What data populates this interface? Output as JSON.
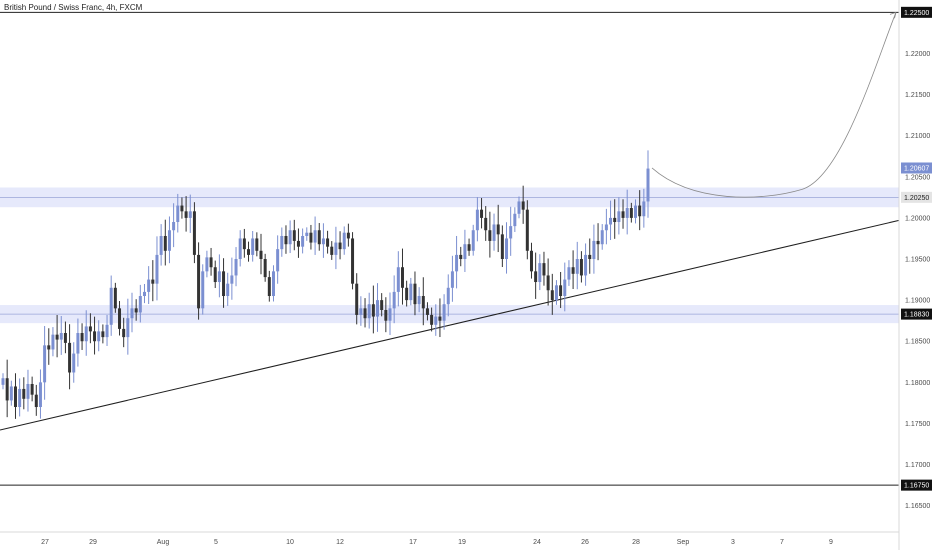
{
  "header": {
    "title": "British Pound / Swiss Franc, 4h, FXCM"
  },
  "colors": {
    "up_candle": "#7b8fd1",
    "down_candle": "#333333",
    "zone_fill": "#e6e9fb",
    "zone_line": "#9aa5d8",
    "trend_line": "#1f1f1f",
    "price_tag": "#7b8fd1",
    "black_tag": "#111111",
    "gray_tag": "#e4e4e4"
  },
  "chart_data": {
    "type": "candlestick",
    "title": "British Pound / Swiss Franc, 4h, FXCM",
    "ylim": [
      1.1618,
      1.2265
    ],
    "y_ticks": [
      "1.16500",
      "1.17000",
      "1.17500",
      "1.18000",
      "1.18500",
      "1.19000",
      "1.19500",
      "1.20000",
      "1.20500",
      "1.21000",
      "1.21500",
      "1.22000"
    ],
    "x_ticks": [
      "27",
      "29",
      "Aug",
      "5",
      "10",
      "12",
      "17",
      "19",
      "24",
      "26",
      "28",
      "Sep",
      "3",
      "7",
      "9"
    ],
    "price_labels": [
      {
        "value": 1.225,
        "label": "1.22500",
        "style": "black"
      },
      {
        "value": 1.20607,
        "label": "1.20607",
        "style": "price"
      },
      {
        "value": 1.2025,
        "label": "1.20250",
        "style": "gray"
      },
      {
        "value": 1.1883,
        "label": "1.18830",
        "style": "black"
      },
      {
        "value": 1.1675,
        "label": "1.16750",
        "style": "black"
      }
    ],
    "horizontal_lines": [
      1.225,
      1.1675
    ],
    "zones": [
      {
        "center": 1.2025,
        "low": 1.2013,
        "high": 1.2037
      },
      {
        "center": 1.1883,
        "low": 1.1872,
        "high": 1.1894
      }
    ],
    "trendline": {
      "start": 1.1742,
      "end": 1.1997
    },
    "projection": {
      "from": 1.20607,
      "trough": 1.2025,
      "to": 1.225
    },
    "close_series": [
      1.1805,
      1.1778,
      1.1795,
      1.177,
      1.1792,
      1.178,
      1.1798,
      1.1785,
      1.177,
      1.18,
      1.1845,
      1.184,
      1.1858,
      1.1852,
      1.186,
      1.1848,
      1.1812,
      1.1835,
      1.186,
      1.185,
      1.1868,
      1.1862,
      1.185,
      1.1862,
      1.1855,
      1.187,
      1.1915,
      1.189,
      1.1865,
      1.1855,
      1.1878,
      1.189,
      1.1885,
      1.1905,
      1.191,
      1.1925,
      1.192,
      1.1955,
      1.1978,
      1.196,
      1.1985,
      1.1995,
      1.2015,
      1.2008,
      1.2,
      1.2008,
      1.1955,
      1.189,
      1.1935,
      1.1952,
      1.194,
      1.1922,
      1.1935,
      1.1905,
      1.192,
      1.193,
      1.195,
      1.1975,
      1.1962,
      1.1955,
      1.1975,
      1.196,
      1.195,
      1.1928,
      1.1905,
      1.1935,
      1.1962,
      1.1978,
      1.1968,
      1.1985,
      1.1972,
      1.1965,
      1.1978,
      1.1982,
      1.197,
      1.1985,
      1.1968,
      1.1975,
      1.1965,
      1.1955,
      1.197,
      1.1962,
      1.1982,
      1.1975,
      1.192,
      1.1882,
      1.189,
      1.1878,
      1.1895,
      1.188,
      1.19,
      1.1888,
      1.1875,
      1.189,
      1.191,
      1.194,
      1.1915,
      1.19,
      1.192,
      1.1895,
      1.1905,
      1.189,
      1.1882,
      1.187,
      1.188,
      1.1875,
      1.1895,
      1.1915,
      1.1935,
      1.1955,
      1.195,
      1.1968,
      1.196,
      1.1985,
      1.201,
      1.2,
      1.1985,
      1.1972,
      1.1992,
      1.198,
      1.195,
      1.1975,
      1.199,
      1.2005,
      1.202,
      1.201,
      1.196,
      1.1935,
      1.1922,
      1.1945,
      1.193,
      1.1912,
      1.19,
      1.1918,
      1.1905,
      1.1925,
      1.194,
      1.1932,
      1.195,
      1.193,
      1.1955,
      1.195,
      1.1972,
      1.1968,
      1.1985,
      1.1992,
      1.2,
      1.1995,
      1.2008,
      1.2,
      1.2012,
      1.2,
      1.2015,
      1.2002,
      1.202,
      1.206
    ]
  }
}
